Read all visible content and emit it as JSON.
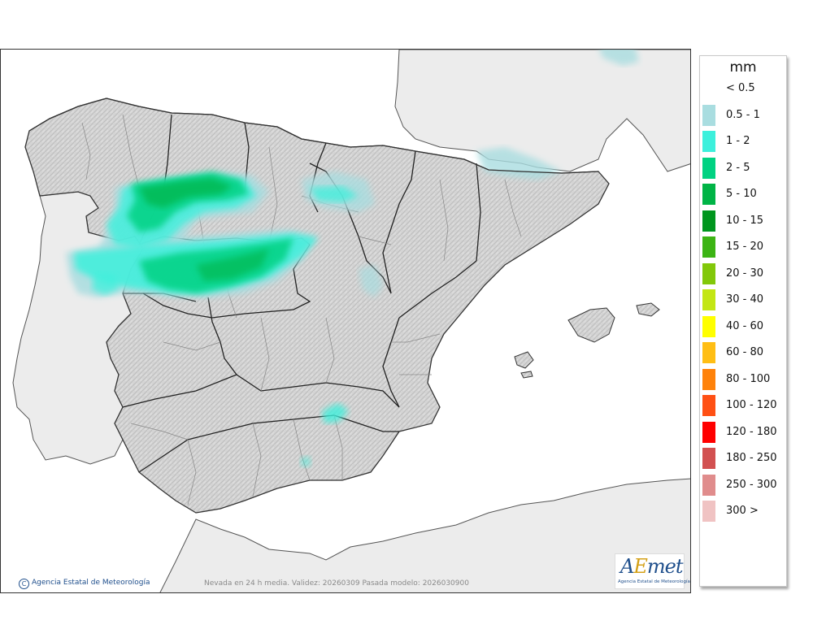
{
  "legend": {
    "title": "mm",
    "items": [
      {
        "label": "< 0.5",
        "color": "#ffffff"
      },
      {
        "label": "0.5 - 1",
        "color": "#a9dde0"
      },
      {
        "label": "1 - 2",
        "color": "#3cf0dc"
      },
      {
        "label": "2 - 5",
        "color": "#00d282"
      },
      {
        "label": "5 - 10",
        "color": "#00b446"
      },
      {
        "label": "10 - 15",
        "color": "#00961e"
      },
      {
        "label": "15 - 20",
        "color": "#3cb414"
      },
      {
        "label": "20 - 30",
        "color": "#82c80a"
      },
      {
        "label": "30 - 40",
        "color": "#c3e614"
      },
      {
        "label": "40 - 60",
        "color": "#ffff00"
      },
      {
        "label": "60 - 80",
        "color": "#ffbe14"
      },
      {
        "label": "80 - 100",
        "color": "#ff820a"
      },
      {
        "label": "100 - 120",
        "color": "#ff5014"
      },
      {
        "label": "120 - 180",
        "color": "#ff0000"
      },
      {
        "label": "180 - 250",
        "color": "#d25050"
      },
      {
        "label": "250 - 300",
        "color": "#e08c8c"
      },
      {
        "label": "300 >",
        "color": "#f0c3c3"
      }
    ]
  },
  "map": {
    "caption": "Nevada en 24 h media. Validez: 20260309 Pasada modelo: 2026030900",
    "copyright": "Agencia Estatal de Meteorología"
  },
  "logo": {
    "word_a": "A",
    "word_e": "E",
    "word_rest": "met",
    "subtitle": "Agencia Estatal de Meteorología"
  }
}
